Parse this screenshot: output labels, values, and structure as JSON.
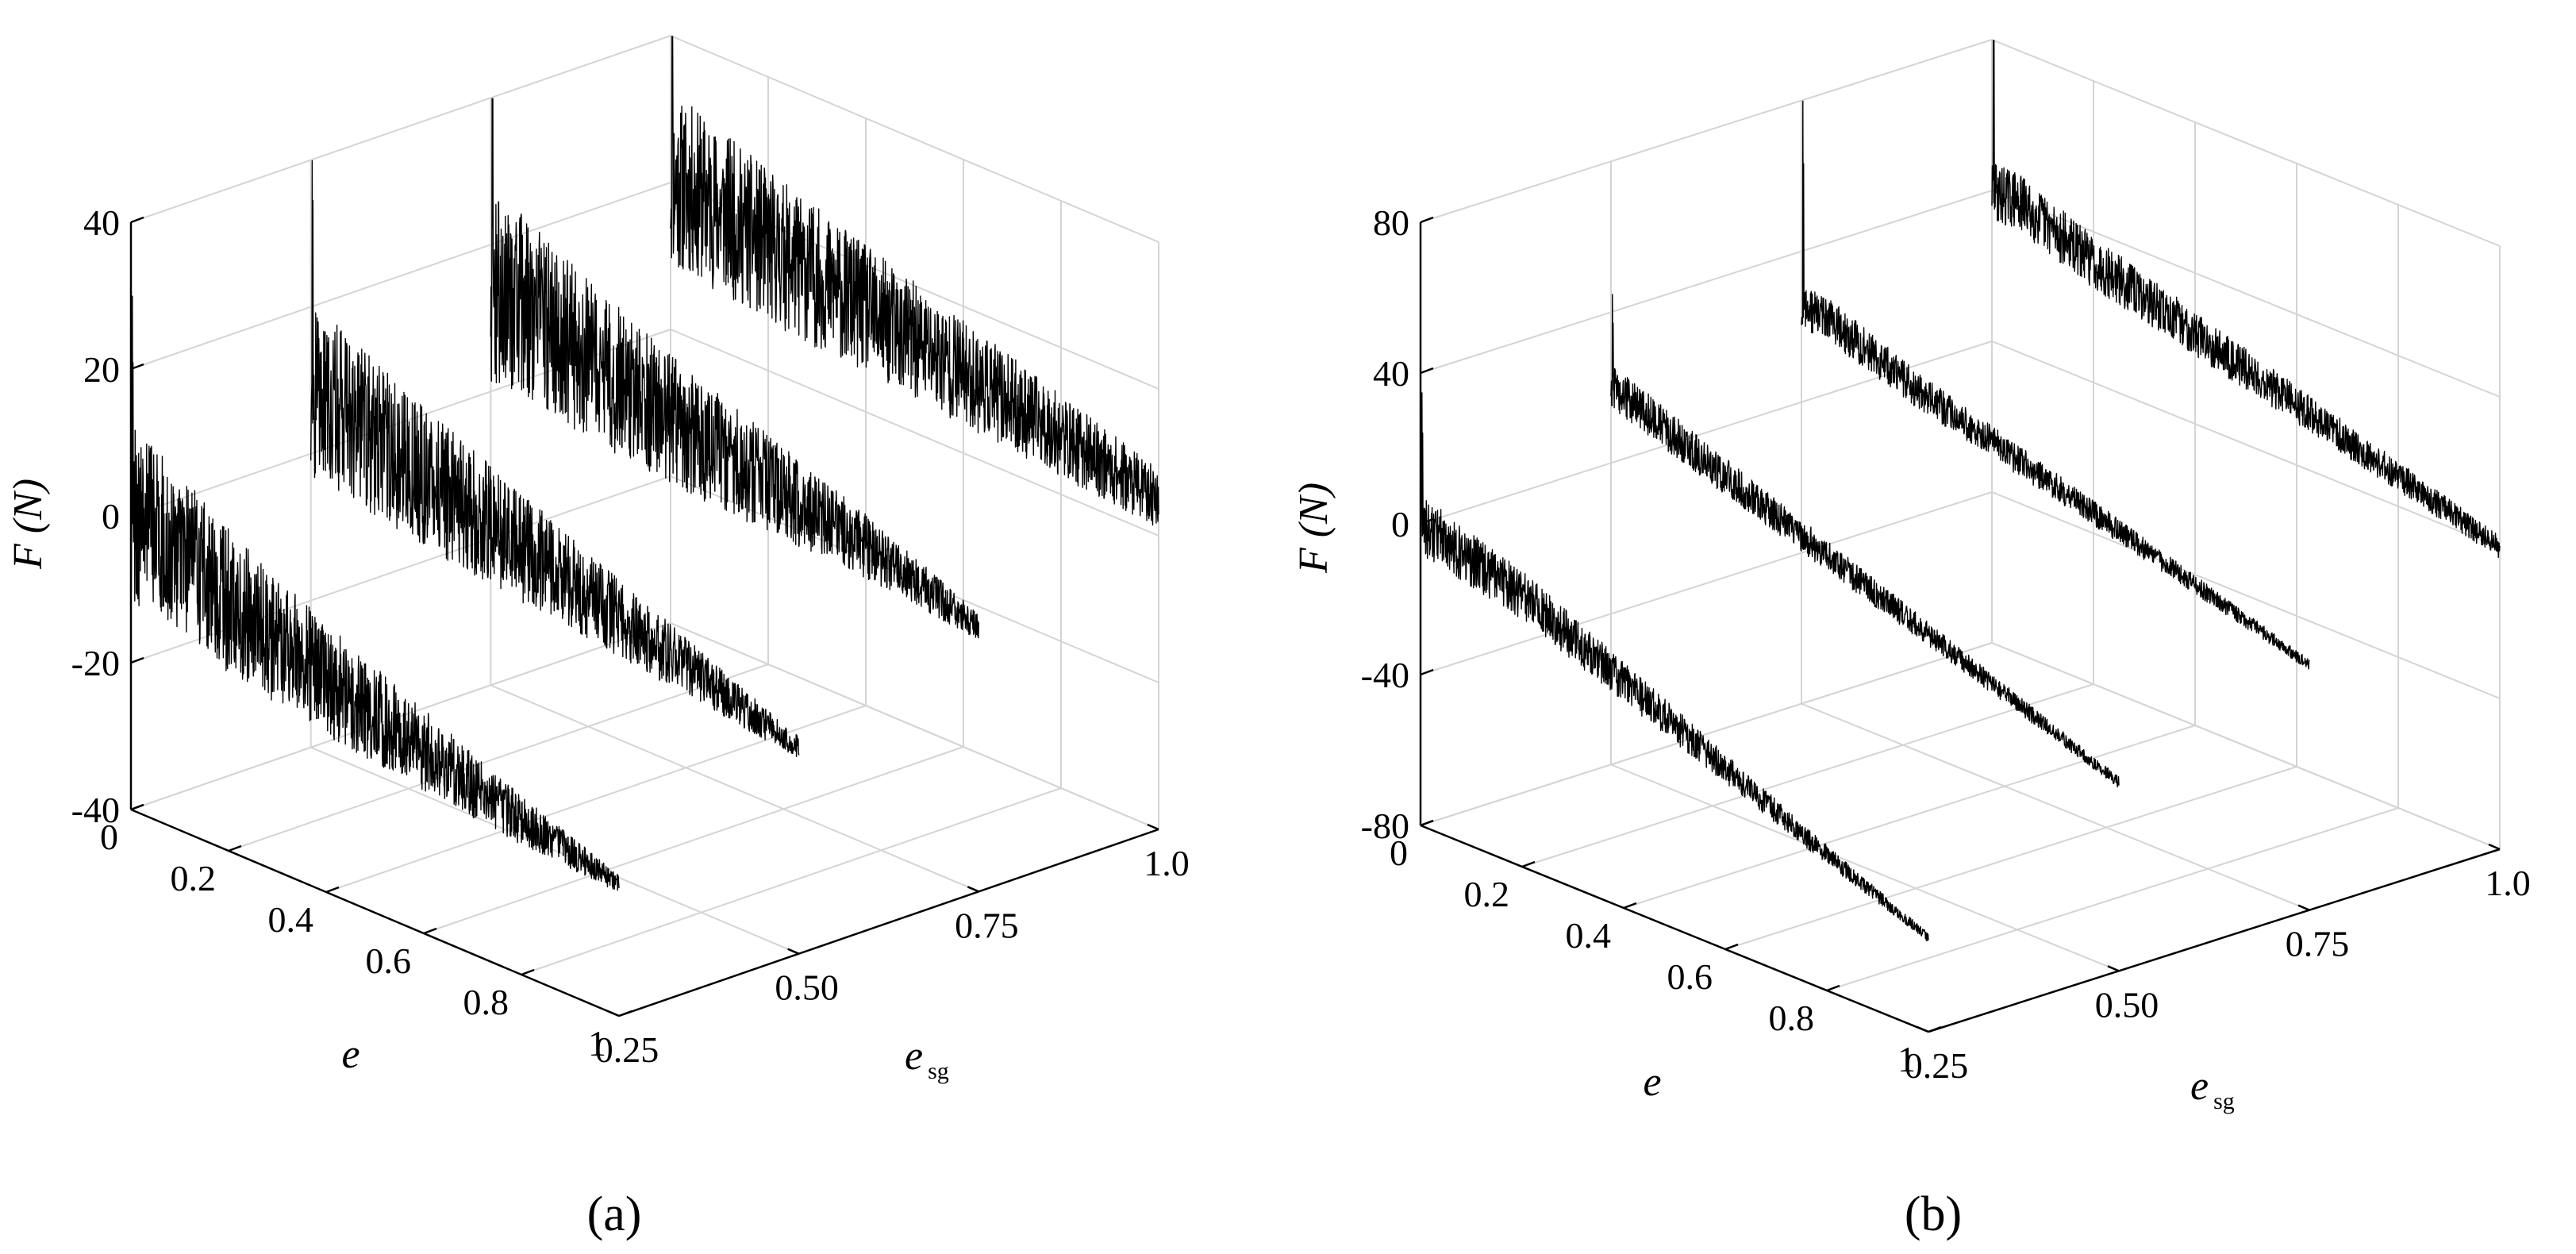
{
  "panels": [
    {
      "label": "(a)",
      "chart_data": {
        "type": "line",
        "subtype": "3d-waterfall",
        "ylabel": "F (N)",
        "xlabel": "e",
        "zlabel": "e_sg",
        "zlabel_main": "e",
        "zlabel_sub": "sg",
        "zlim": [
          -40,
          40
        ],
        "z_ticks": [
          "40",
          "20",
          "0",
          "-20",
          "-40"
        ],
        "z_tick_values": [
          40,
          20,
          0,
          -20,
          -40
        ],
        "x_ticks": [
          "0",
          "0.2",
          "0.4",
          "0.6",
          "0.8",
          "1"
        ],
        "x_tick_values": [
          0,
          0.2,
          0.4,
          0.6,
          0.8,
          1
        ],
        "esg_ticks": [
          "0.25",
          "0.50",
          "0.75",
          "1.0"
        ],
        "esg_tick_values": [
          0.25,
          0.5,
          0.75,
          1.0
        ],
        "grid": true,
        "series": [
          {
            "e_sg": 0.25,
            "start_mean": 0,
            "end_mean": -22,
            "noise_start": 12,
            "noise_end": 1.2,
            "spike": 30,
            "x": [
              0,
              0.05,
              0.2,
              0.4,
              0.6,
              0.8,
              1.0
            ],
            "F": [
              0,
              0,
              -6,
              -11,
              -15,
              -19,
              -22
            ]
          },
          {
            "e_sg": 0.5,
            "start_mean": 8,
            "end_mean": -12,
            "noise_start": 12,
            "noise_end": 1.5,
            "spike": 38,
            "x": [
              0,
              0.05,
              0.2,
              0.4,
              0.6,
              0.8,
              1.0
            ],
            "F": [
              8,
              8,
              4,
              0,
              -4,
              -8,
              -12
            ]
          },
          {
            "e_sg": 0.75,
            "start_mean": 14,
            "end_mean": -4,
            "noise_start": 13,
            "noise_end": 1.8,
            "spike": 40,
            "x": [
              0,
              0.05,
              0.2,
              0.4,
              0.6,
              0.8,
              1.0
            ],
            "F": [
              14,
              14,
              10,
              6,
              3,
              0,
              -4
            ]
          },
          {
            "e_sg": 1.0,
            "start_mean": 20,
            "end_mean": 5,
            "noise_start": 12,
            "noise_end": 4,
            "spike": 45,
            "x": [
              0,
              0.05,
              0.2,
              0.4,
              0.6,
              0.8,
              1.0
            ],
            "F": [
              20,
              20,
              17,
              14,
              11,
              8,
              5
            ]
          }
        ]
      }
    },
    {
      "label": "(b)",
      "chart_data": {
        "type": "line",
        "subtype": "3d-waterfall",
        "ylabel": "F (N)",
        "xlabel": "e",
        "zlabel": "e_sg",
        "zlabel_main": "e",
        "zlabel_sub": "sg",
        "zlim": [
          -80,
          80
        ],
        "z_ticks": [
          "80",
          "40",
          "0",
          "-40",
          "-80"
        ],
        "z_tick_values": [
          80,
          40,
          0,
          -40,
          -80
        ],
        "x_ticks": [
          "0",
          "0.2",
          "0.4",
          "0.6",
          "0.8",
          "1"
        ],
        "x_tick_values": [
          0,
          0.2,
          0.4,
          0.6,
          0.8,
          1
        ],
        "esg_ticks": [
          "0.25",
          "0.50",
          "0.75",
          "1.0"
        ],
        "esg_tick_values": [
          0.25,
          0.5,
          0.75,
          1.0
        ],
        "grid": true,
        "series": [
          {
            "e_sg": 0.25,
            "start_mean": 0,
            "end_mean": -55,
            "noise_start": 8,
            "noise_end": 1.2,
            "spike": 35,
            "x": [
              0,
              0.05,
              0.2,
              0.4,
              0.6,
              0.8,
              1.0
            ],
            "F": [
              0,
              -2,
              -8,
              -20,
              -32,
              -44,
              -55
            ]
          },
          {
            "e_sg": 0.5,
            "start_mean": 20,
            "end_mean": -30,
            "noise_start": 6,
            "noise_end": 1.5,
            "spike": 25,
            "x": [
              0,
              0.05,
              0.2,
              0.4,
              0.6,
              0.8,
              1.0
            ],
            "F": [
              20,
              18,
              10,
              0,
              -10,
              -20,
              -30
            ]
          },
          {
            "e_sg": 0.75,
            "start_mean": 25,
            "end_mean": -15,
            "noise_start": 6,
            "noise_end": 1.5,
            "spike": 55,
            "x": [
              0,
              0.05,
              0.2,
              0.4,
              0.6,
              0.8,
              1.0
            ],
            "F": [
              25,
              25,
              17,
              9,
              1,
              -7,
              -15
            ]
          },
          {
            "e_sg": 1.0,
            "start_mean": 40,
            "end_mean": 0,
            "noise_start": 8,
            "noise_end": 3,
            "spike": 75,
            "x": [
              0,
              0.05,
              0.2,
              0.4,
              0.6,
              0.8,
              1.0
            ],
            "F": [
              40,
              40,
              32,
              24,
              16,
              8,
              0
            ]
          }
        ]
      }
    }
  ]
}
